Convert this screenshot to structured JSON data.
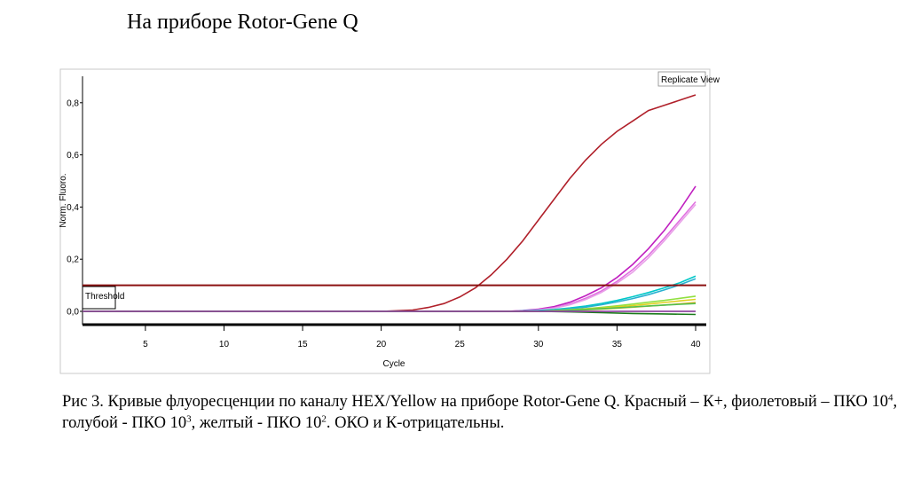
{
  "heading": "На приборе Rotor-Gene Q",
  "caption": {
    "p1": "Рис 3. Кривые флуоресценции по каналу HEX/Yellow на приборе Rotor-Gene Q. Красный – К+, фиолетовый – ПКО 10",
    "sup1": "4",
    "p2": ", голубой - ПКО 10",
    "sup2": "3",
    "p3": ", желтый - ПКО 10",
    "sup3": "2",
    "p4": ". ОКО и К-отрицательны."
  },
  "chart_data": {
    "type": "line",
    "title": "Replicate View",
    "xlabel": "Cycle",
    "ylabel": "Norm. Fluoro.",
    "xlim": [
      1,
      40
    ],
    "ylim": [
      -0.05,
      0.9
    ],
    "x_ticks": [
      5,
      10,
      15,
      20,
      25,
      30,
      35,
      40
    ],
    "y_ticks": [
      0.0,
      0.2,
      0.4,
      0.6,
      0.8
    ],
    "y_tick_labels": [
      "0,0",
      "0,2",
      "0,4",
      "0,6",
      "0,8"
    ],
    "threshold": {
      "label": "Threshold",
      "value": 0.1,
      "color": "#8b1010"
    },
    "grid": false,
    "series": [
      {
        "color": "#b0202a",
        "x": [
          1,
          5,
          10,
          15,
          20,
          22,
          23,
          24,
          25,
          26,
          27,
          28,
          29,
          30,
          31,
          32,
          33,
          34,
          35,
          36,
          37,
          38,
          39,
          40
        ],
        "y": [
          0.0,
          0.0,
          0.0,
          0.0,
          0.0,
          0.005,
          0.015,
          0.03,
          0.055,
          0.09,
          0.14,
          0.2,
          0.27,
          0.35,
          0.43,
          0.51,
          0.58,
          0.64,
          0.69,
          0.73,
          0.77,
          0.79,
          0.81,
          0.83
        ]
      },
      {
        "color": "#c020c0",
        "x": [
          1,
          10,
          20,
          28,
          29,
          30,
          31,
          32,
          33,
          34,
          35,
          36,
          37,
          38,
          39,
          40
        ],
        "y": [
          0.0,
          0.0,
          0.0,
          0.0,
          0.003,
          0.008,
          0.018,
          0.035,
          0.06,
          0.09,
          0.13,
          0.18,
          0.24,
          0.31,
          0.39,
          0.48
        ]
      },
      {
        "color": "#e070e0",
        "x": [
          1,
          10,
          20,
          28,
          29,
          30,
          31,
          32,
          33,
          34,
          35,
          36,
          37,
          38,
          39,
          40
        ],
        "y": [
          0.0,
          0.0,
          0.0,
          0.0,
          0.002,
          0.006,
          0.014,
          0.028,
          0.05,
          0.078,
          0.115,
          0.16,
          0.215,
          0.28,
          0.35,
          0.42
        ]
      },
      {
        "color": "#e8a0e8",
        "x": [
          1,
          10,
          20,
          28,
          29,
          30,
          31,
          32,
          33,
          34,
          35,
          36,
          37,
          38,
          39,
          40
        ],
        "y": [
          0.0,
          0.0,
          0.0,
          0.0,
          0.002,
          0.005,
          0.012,
          0.025,
          0.045,
          0.072,
          0.108,
          0.15,
          0.205,
          0.27,
          0.34,
          0.41
        ]
      },
      {
        "color": "#00c8c8",
        "x": [
          1,
          10,
          20,
          28,
          30,
          31,
          32,
          33,
          34,
          35,
          36,
          37,
          38,
          39,
          40
        ],
        "y": [
          0.0,
          0.0,
          0.0,
          0.0,
          0.003,
          0.007,
          0.013,
          0.02,
          0.03,
          0.042,
          0.056,
          0.072,
          0.09,
          0.11,
          0.135
        ]
      },
      {
        "color": "#2ab0d0",
        "x": [
          1,
          10,
          20,
          28,
          30,
          31,
          32,
          33,
          34,
          35,
          36,
          37,
          38,
          39,
          40
        ],
        "y": [
          0.0,
          0.0,
          0.0,
          0.0,
          0.002,
          0.005,
          0.01,
          0.016,
          0.025,
          0.036,
          0.049,
          0.064,
          0.082,
          0.102,
          0.125
        ]
      },
      {
        "color": "#90e040",
        "x": [
          1,
          10,
          20,
          30,
          31,
          32,
          33,
          34,
          35,
          36,
          37,
          38,
          39,
          40
        ],
        "y": [
          0.0,
          0.0,
          0.0,
          0.0,
          0.003,
          0.006,
          0.01,
          0.015,
          0.021,
          0.028,
          0.035,
          0.042,
          0.05,
          0.058
        ]
      },
      {
        "color": "#e0d020",
        "x": [
          1,
          10,
          20,
          30,
          31,
          32,
          33,
          34,
          35,
          36,
          37,
          38,
          39,
          40
        ],
        "y": [
          0.0,
          0.0,
          0.0,
          0.0,
          0.002,
          0.005,
          0.008,
          0.012,
          0.017,
          0.022,
          0.028,
          0.034,
          0.04,
          0.046
        ]
      },
      {
        "color": "#e8b020",
        "x": [
          1,
          10,
          20,
          30,
          31,
          32,
          33,
          34,
          35,
          36,
          37,
          38,
          39,
          40
        ],
        "y": [
          0.0,
          0.0,
          0.0,
          0.0,
          0.001,
          0.003,
          0.006,
          0.009,
          0.012,
          0.016,
          0.02,
          0.024,
          0.029,
          0.034
        ]
      },
      {
        "color": "#50c050",
        "x": [
          1,
          10,
          20,
          30,
          32,
          34,
          36,
          38,
          40
        ],
        "y": [
          0.0,
          0.0,
          0.0,
          0.0,
          0.004,
          0.01,
          0.017,
          0.024,
          0.03
        ]
      },
      {
        "color": "#1a7a1a",
        "x": [
          1,
          10,
          20,
          30,
          32,
          34,
          36,
          38,
          40
        ],
        "y": [
          0.0,
          0.0,
          0.0,
          0.0,
          -0.002,
          -0.005,
          -0.008,
          -0.01,
          -0.012
        ]
      },
      {
        "color": "#3070a0",
        "x": [
          1,
          10,
          20,
          30,
          35,
          40
        ],
        "y": [
          0.0,
          0.0,
          0.0,
          0.0,
          0.0,
          0.0
        ]
      },
      {
        "color": "#a040a0",
        "x": [
          1,
          10,
          20,
          30,
          35,
          40
        ],
        "y": [
          0.0,
          0.0,
          0.0,
          0.0,
          0.0,
          0.0
        ]
      }
    ]
  }
}
